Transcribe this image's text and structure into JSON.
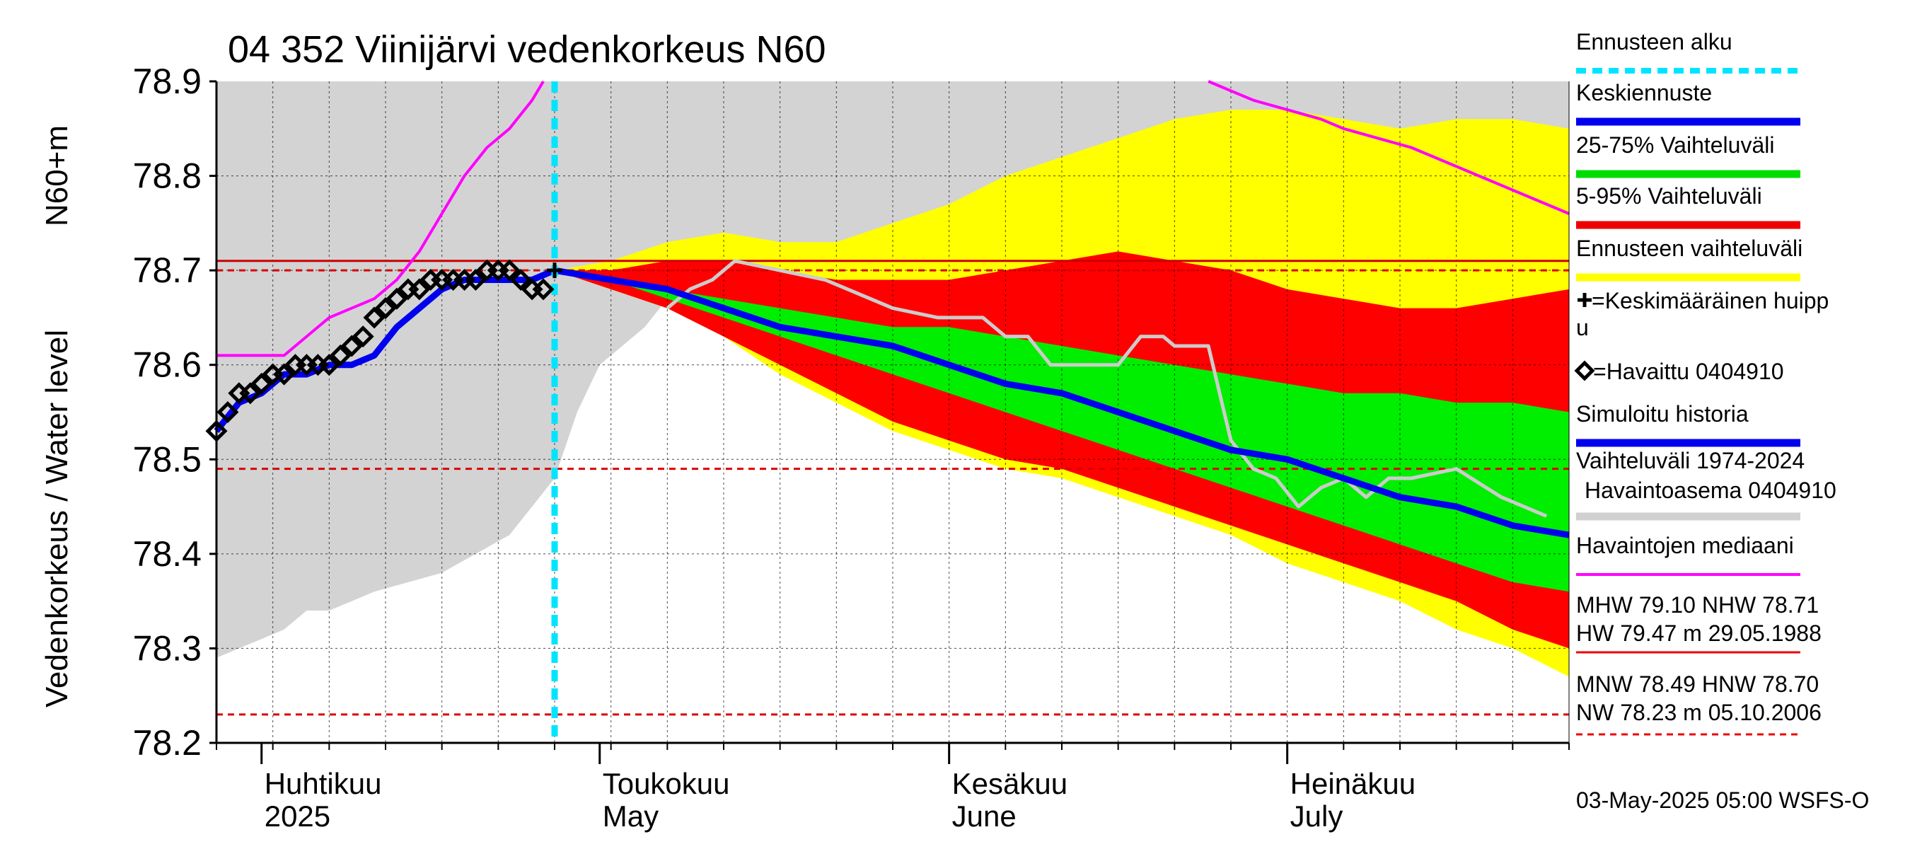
{
  "chart_data": {
    "type": "line",
    "title": "04 352 Viinijärvi vedenkorkeus N60",
    "ylabel": "Vedenkorkeus / Water level",
    "yunit": "N60+m",
    "ylim": [
      78.2,
      78.9
    ],
    "yticks": [
      "78.2",
      "78.3",
      "78.4",
      "78.5",
      "78.6",
      "78.7",
      "78.8",
      "78.9"
    ],
    "x_range_days": [
      0,
      120
    ],
    "x_start_date": "2025-03-28",
    "months": [
      {
        "day": 4,
        "fi": "Huhtikuu",
        "en": "2025"
      },
      {
        "day": 34,
        "fi": "Toukokuu",
        "en": "May"
      },
      {
        "day": 65,
        "fi": "Kesäkuu",
        "en": "June"
      },
      {
        "day": 95,
        "fi": "Heinäkuu",
        "en": "July"
      }
    ],
    "forecast_start_day": 30,
    "reference_lines": [
      {
        "name": "NHW",
        "value": 78.71,
        "color": "#cc0000",
        "style": "solid"
      },
      {
        "name": "HNW",
        "value": 78.7,
        "color": "#dd0000",
        "style": "dashed"
      },
      {
        "name": "MNW",
        "value": 78.49,
        "color": "#dd0000",
        "style": "dashed"
      },
      {
        "name": "NW",
        "value": 78.23,
        "color": "#dd0000",
        "style": "dashed"
      }
    ],
    "historical_range": {
      "name": "Vaihteluväli 1974-2024 Havaintoasema 0404910",
      "days": [
        0,
        2,
        4,
        6,
        8,
        10,
        14,
        20,
        26,
        30,
        32,
        34,
        36,
        38,
        40,
        44,
        48,
        52,
        56,
        60,
        65,
        70,
        75,
        80,
        85,
        90,
        95,
        100,
        105,
        110,
        115,
        120
      ],
      "upper": [
        78.9,
        78.9,
        78.9,
        78.9,
        78.9,
        78.9,
        78.9,
        78.9,
        78.9,
        78.9,
        78.9,
        78.9,
        78.9,
        78.9,
        78.9,
        78.9,
        78.9,
        78.9,
        78.9,
        78.9,
        78.9,
        78.9,
        78.9,
        78.9,
        78.9,
        78.9,
        78.9,
        78.9,
        78.9,
        78.9,
        78.9,
        78.9
      ],
      "lower": [
        78.29,
        78.3,
        78.31,
        78.32,
        78.34,
        78.34,
        78.36,
        78.38,
        78.42,
        78.48,
        78.55,
        78.6,
        78.62,
        78.64,
        78.67,
        78.69,
        78.7,
        78.7,
        78.7,
        78.7,
        78.7,
        78.7,
        78.7,
        78.7,
        78.7,
        78.7,
        78.7,
        78.7,
        78.7,
        78.7,
        78.7,
        78.7
      ]
    },
    "forecast_days": [
      30,
      35,
      40,
      45,
      50,
      55,
      60,
      65,
      70,
      75,
      80,
      85,
      90,
      95,
      100,
      105,
      110,
      115,
      120
    ],
    "forecast_range": {
      "name": "Ennusteen vaihteluväli",
      "upper": [
        78.7,
        78.71,
        78.73,
        78.74,
        78.73,
        78.73,
        78.75,
        78.77,
        78.8,
        78.82,
        78.84,
        78.86,
        78.87,
        78.87,
        78.86,
        78.85,
        78.86,
        78.86,
        78.85
      ],
      "lower": [
        78.7,
        78.68,
        78.66,
        78.63,
        78.59,
        78.56,
        78.53,
        78.51,
        78.49,
        78.48,
        78.46,
        78.44,
        78.42,
        78.39,
        78.37,
        78.35,
        78.32,
        78.3,
        78.27
      ]
    },
    "p5_95": {
      "name": "5-95% Vaihteluväli",
      "upper": [
        78.7,
        78.7,
        78.71,
        78.71,
        78.7,
        78.69,
        78.69,
        78.69,
        78.7,
        78.71,
        78.72,
        78.71,
        78.7,
        78.68,
        78.67,
        78.66,
        78.66,
        78.67,
        78.68
      ],
      "lower": [
        78.7,
        78.68,
        78.66,
        78.63,
        78.6,
        78.57,
        78.54,
        78.52,
        78.5,
        78.49,
        78.47,
        78.45,
        78.43,
        78.41,
        78.39,
        78.37,
        78.35,
        78.32,
        78.3
      ]
    },
    "p25_75": {
      "name": "25-75% Vaihteluväli",
      "upper": [
        78.7,
        78.69,
        78.68,
        78.67,
        78.66,
        78.65,
        78.64,
        78.64,
        78.63,
        78.62,
        78.61,
        78.6,
        78.59,
        78.58,
        78.57,
        78.57,
        78.56,
        78.56,
        78.55
      ],
      "lower": [
        78.7,
        78.69,
        78.67,
        78.65,
        78.63,
        78.61,
        78.59,
        78.57,
        78.55,
        78.53,
        78.51,
        78.49,
        78.47,
        78.45,
        78.43,
        78.41,
        78.39,
        78.37,
        78.36
      ]
    },
    "mean_forecast": {
      "name": "Keskiennuste",
      "values": [
        78.7,
        78.69,
        78.68,
        78.66,
        78.64,
        78.63,
        78.62,
        78.6,
        78.58,
        78.57,
        78.55,
        78.53,
        78.51,
        78.5,
        78.48,
        78.46,
        78.45,
        78.43,
        78.42
      ]
    },
    "simulated_history": {
      "name": "Simuloitu historia",
      "days": [
        0,
        2,
        4,
        6,
        8,
        10,
        12,
        14,
        16,
        18,
        20,
        22,
        24,
        26,
        28,
        30
      ],
      "values": [
        78.53,
        78.56,
        78.57,
        78.59,
        78.59,
        78.6,
        78.6,
        78.61,
        78.64,
        78.66,
        78.68,
        78.69,
        78.69,
        78.69,
        78.69,
        78.7
      ]
    },
    "observed": {
      "name": "Havaittu 0404910",
      "days": [
        0,
        1,
        2,
        3,
        4,
        5,
        6,
        7,
        8,
        9,
        10,
        11,
        12,
        13,
        14,
        15,
        16,
        17,
        18,
        19,
        20,
        21,
        22,
        23,
        24,
        25,
        26,
        27,
        28,
        29
      ],
      "values": [
        78.53,
        78.55,
        78.57,
        78.57,
        78.58,
        78.59,
        78.59,
        78.6,
        78.6,
        78.6,
        78.6,
        78.61,
        78.62,
        78.63,
        78.65,
        78.66,
        78.67,
        78.68,
        78.68,
        78.69,
        78.69,
        78.69,
        78.69,
        78.69,
        78.7,
        78.7,
        78.7,
        78.69,
        78.68,
        78.68
      ]
    },
    "observed_median": {
      "name": "Havaintojen mediaani",
      "days": [
        0,
        2,
        4,
        6,
        8,
        10,
        12,
        14,
        16,
        18,
        20,
        22,
        24,
        26,
        28,
        29
      ],
      "values": [
        78.61,
        78.61,
        78.61,
        78.61,
        78.63,
        78.65,
        78.66,
        78.67,
        78.69,
        78.72,
        78.76,
        78.8,
        78.83,
        78.85,
        78.88,
        78.9
      ],
      "days2": [
        88,
        90,
        92,
        95,
        98,
        100,
        103,
        106,
        110,
        114,
        118,
        120
      ],
      "values2": [
        78.9,
        78.89,
        78.88,
        78.87,
        78.86,
        78.85,
        78.84,
        78.83,
        78.81,
        78.79,
        78.77,
        78.76
      ]
    },
    "median_forecast_gray": {
      "days": [
        40,
        42,
        44,
        46,
        50,
        54,
        58,
        60,
        64,
        68,
        70,
        72,
        74,
        76,
        80,
        82,
        84,
        85,
        86,
        88,
        90,
        92,
        94,
        96,
        98,
        100,
        102,
        104,
        106,
        110,
        114,
        118
      ],
      "values": [
        78.66,
        78.68,
        78.69,
        78.71,
        78.7,
        78.69,
        78.67,
        78.66,
        78.65,
        78.65,
        78.63,
        78.63,
        78.6,
        78.6,
        78.6,
        78.63,
        78.63,
        78.62,
        78.62,
        78.62,
        78.52,
        78.49,
        78.48,
        78.45,
        78.47,
        78.48,
        78.46,
        78.48,
        78.48,
        78.49,
        78.46,
        78.44
      ]
    },
    "mean_peak": {
      "name": "Keskimääräinen huippu",
      "day": 30,
      "value": 78.7
    }
  },
  "legend": [
    {
      "label": "Ennusteen alku",
      "color": "#00e5ff",
      "kind": "dashed"
    },
    {
      "label": "Keskiennuste",
      "color": "#0000ee",
      "kind": "thick"
    },
    {
      "label": "25-75% Vaihteluväli",
      "color": "#00dd00",
      "kind": "thick"
    },
    {
      "label": "5-95% Vaihteluväli",
      "color": "#ee0000",
      "kind": "thick"
    },
    {
      "label": "Ennusteen vaihteluväli",
      "color": "#ffff00",
      "kind": "thick"
    },
    {
      "label": "+=Keskimääräinen huipp",
      "label2": "u",
      "color": "#000000",
      "kind": "none"
    },
    {
      "label": "=Havaittu 0404910",
      "color": "#000000",
      "kind": "none"
    },
    {
      "label": "Simuloitu historia",
      "color": "#0000ee",
      "kind": "thick"
    },
    {
      "label": "Vaihteluväli 1974-2024",
      "label2": "Havaintoasema 0404910",
      "color": "#d0d0d0",
      "kind": "thick"
    },
    {
      "label": "Havaintojen mediaani",
      "color": "#ff00ff",
      "kind": "thin"
    }
  ],
  "stats": {
    "line1": "MHW  79.10 NHW  78.71",
    "line2": "HW  79.47 m 29.05.1988",
    "line3": "MNW  78.49 HNW  78.70",
    "line4": "NW  78.23 m 05.10.2006"
  },
  "footer": "03-May-2025 05:00 WSFS-O"
}
